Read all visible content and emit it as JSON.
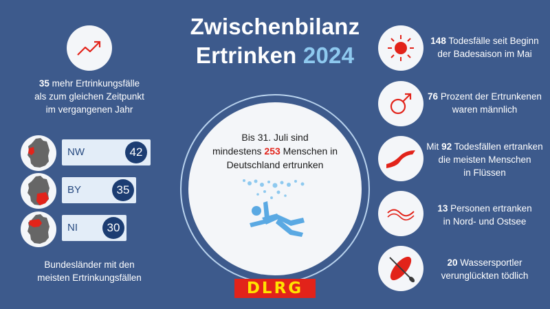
{
  "title": {
    "line1": "Zwischenbilanz",
    "line2_word": "Ertrinken",
    "line2_year": "2024"
  },
  "center": {
    "line1": "Bis 31. Juli sind",
    "line2_pre": "mindestens",
    "line2_num": "253",
    "line2_post": "Menschen in",
    "line3": "Deutschland ertrunken",
    "icon": "drowning-person-icon"
  },
  "left": {
    "trend": {
      "icon": "trend-up-icon",
      "num": "35",
      "text1": "mehr Ertrinkungsfälle",
      "text2": "als zum gleichen Zeitpunkt",
      "text3": "im vergangenen Jahr"
    },
    "states": [
      {
        "code": "NW",
        "value": "42",
        "bar_fraction": 1.0
      },
      {
        "code": "BY",
        "value": "35",
        "bar_fraction": 0.84
      },
      {
        "code": "NI",
        "value": "30",
        "bar_fraction": 0.72
      }
    ],
    "caption1": "Bundesländer mit den",
    "caption2": "meisten Ertrinkungsfällen"
  },
  "right": [
    {
      "icon": "sun-icon",
      "num": "148",
      "text1": "Todesfälle seit Beginn",
      "text2": "der Badesaison im Mai"
    },
    {
      "icon": "male-symbol-icon",
      "num": "76",
      "text1": "Prozent der Ertrunkenen",
      "text2": "waren männlich"
    },
    {
      "icon": "river-icon",
      "num": "92",
      "pre": "Mit",
      "text1": "Todesfällen ertranken",
      "text2": "die meisten Menschen",
      "text3": "in Flüssen"
    },
    {
      "icon": "wave-icon",
      "num": "13",
      "text1": "Personen ertranken",
      "text2": "in Nord- und Ostsee"
    },
    {
      "icon": "paddleboard-icon",
      "num": "20",
      "text1": "Wassersportler",
      "text2": "verunglückten tödlich"
    }
  ],
  "logo": "DLRG",
  "colors": {
    "background": "#3d5a8c",
    "accent_red": "#e2231a",
    "accent_blue": "#8ec9ef",
    "badge_navy": "#1c3d72"
  }
}
